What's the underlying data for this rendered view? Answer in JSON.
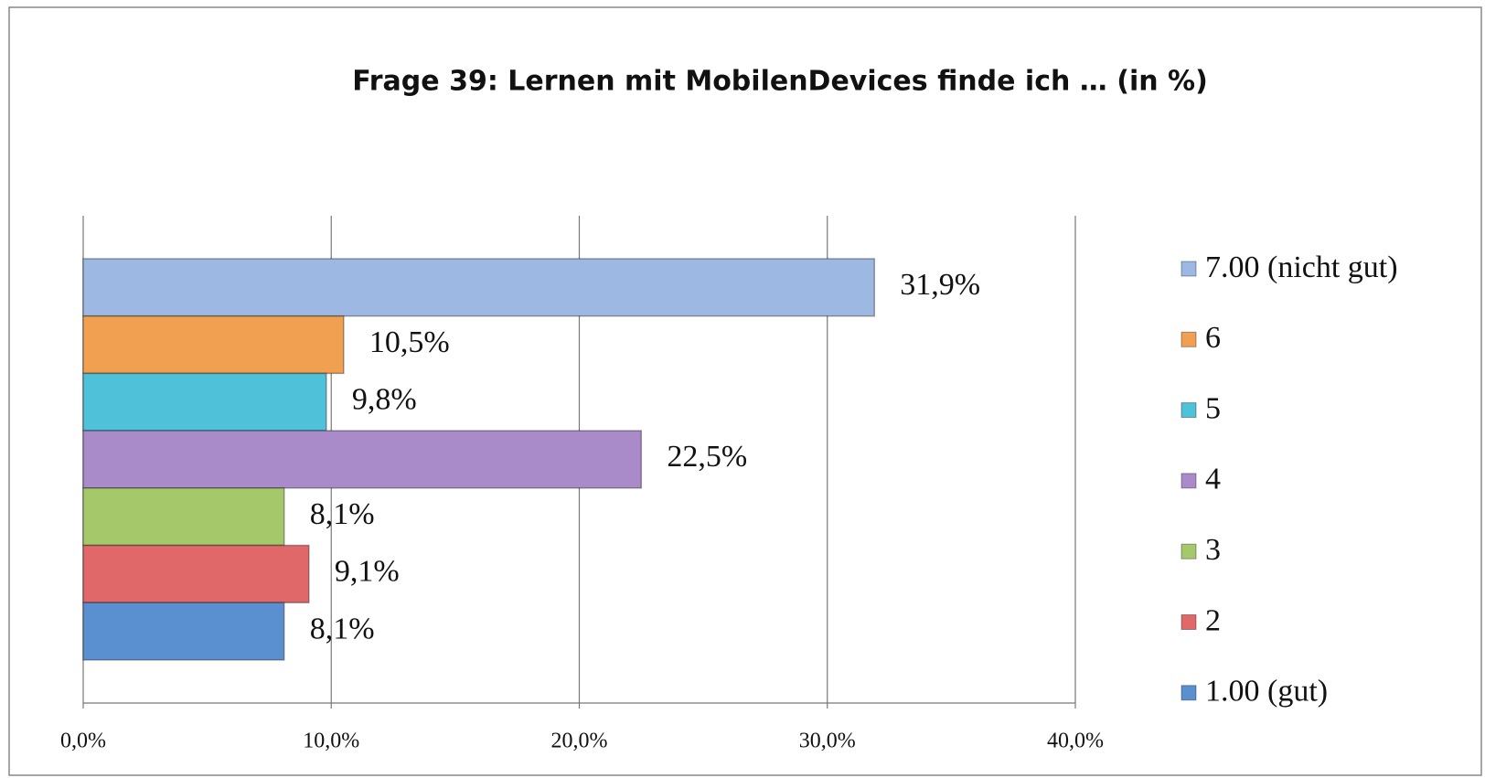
{
  "chart_data": {
    "type": "bar",
    "orientation": "horizontal",
    "title": "Frage 39: Lernen mit MobilenDevices finde ich … (in %)",
    "series": [
      {
        "name": "7.00 (nicht gut)",
        "color": "#9db9e3",
        "values": [
          31.9
        ],
        "value_labels": [
          "31,9%"
        ]
      },
      {
        "name": "6",
        "color": "#f0a050",
        "values": [
          10.5
        ],
        "value_labels": [
          "10,5%"
        ]
      },
      {
        "name": "5",
        "color": "#4fc1d8",
        "values": [
          9.8
        ],
        "value_labels": [
          "9,8%"
        ]
      },
      {
        "name": "4",
        "color": "#a88bc8",
        "values": [
          22.5
        ],
        "value_labels": [
          "22,5%"
        ]
      },
      {
        "name": "3",
        "color": "#a5c96a",
        "values": [
          8.1
        ],
        "value_labels": [
          "8,1%"
        ]
      },
      {
        "name": "2",
        "color": "#e06868",
        "values": [
          9.1
        ],
        "value_labels": [
          "9,1%"
        ]
      },
      {
        "name": "1.00 (gut)",
        "color": "#5a8fd0",
        "values": [
          8.1
        ],
        "value_labels": [
          "8,1%"
        ]
      }
    ],
    "xlim": [
      0,
      40
    ],
    "xticks": [
      {
        "value": 0,
        "label": "0,0%"
      },
      {
        "value": 10,
        "label": "10,0%"
      },
      {
        "value": 20,
        "label": "20,0%"
      },
      {
        "value": 30,
        "label": "30,0%"
      },
      {
        "value": 40,
        "label": "40,0%"
      }
    ],
    "grid": true,
    "legend": "right"
  }
}
